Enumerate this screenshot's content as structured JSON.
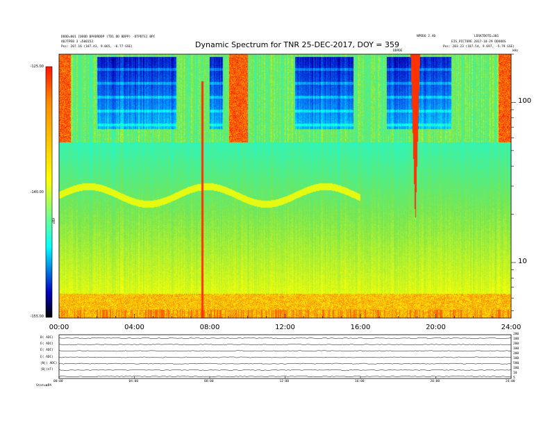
{
  "header": {
    "title": "Dynamic Spectrum for TNR 25-DEC-2017, DOY = 359",
    "left_line1": "DOOD=001 [DOOD  BPADRDDP (TD1 DD BDPP)  -DTPDTEJ BPC",
    "left_line2": "ADJTPEB 3  =500152",
    "left_line3": "Pos:  207.16 (187.43, 9.065, -6.77 GSE)",
    "right_top_mid": "NPODO 2.40",
    "right_top_right": "LDSKTDOTE=301",
    "right_line2": "EIS_PICTURE 2017-10-29 DDOOOS",
    "right_line3": "Pos:  203.23 (187.54, 9.697, -5.79 GSE)",
    "over_plot_label": "DDPDE",
    "right_corner_label": "kHz"
  },
  "colorbar": {
    "unit_label": "dBV",
    "tick_labels": [
      "-125.00",
      "-140.00",
      "-155.00"
    ],
    "stops": [
      "#ff1400",
      "#ff8a00",
      "#ffff00",
      "#00ffff",
      "#0000c0",
      "#000000"
    ]
  },
  "chart_data": {
    "type": "heatmap",
    "title": "Dynamic Spectrum for TNR 25-DEC-2017, DOY = 359",
    "xlabel": "",
    "ylabel": "kHz",
    "x_ticks": [
      "00:00",
      "04:00",
      "08:00",
      "12:00",
      "16:00",
      "20:00",
      "24:00"
    ],
    "x_range_hours": [
      0,
      24
    ],
    "y_scale": "log",
    "y_ticks": [
      100,
      10
    ],
    "y_tick_labels": [
      "100",
      "10"
    ],
    "colorbar_range_dBV": [
      -155,
      -125
    ],
    "colormap_order_low_to_high": [
      "black",
      "blue",
      "cyan",
      "yellow",
      "orange",
      "red"
    ],
    "bands": [
      {
        "name": "upper receiver band (above ~65 kHz)",
        "baseline": "cyan-green",
        "strong_absorption_intervals_hours": [
          [
            2.0,
            6.2
          ],
          [
            8.0,
            8.7
          ],
          [
            12.5,
            15.6
          ],
          [
            17.4,
            20.8
          ]
        ]
      },
      {
        "name": "lower receiver band (below ~65 kHz)",
        "baseline": "cyan-green gradient to yellow near bottom"
      }
    ],
    "features": [
      {
        "type": "burst",
        "hour": 7.6,
        "note": "narrow red vertical emission through lower band"
      },
      {
        "type": "burst",
        "hour": 18.9,
        "note": "red tapering feature reaching ~20 kHz"
      },
      {
        "type": "band_edge",
        "hours": [
          0.3,
          16.0
        ],
        "note": "brightening plasma line ~20-45 kHz"
      }
    ]
  },
  "aux_panel": {
    "row_labels": [
      "B( ADC)",
      "E( ADC)",
      "E( ADC)",
      "E( ADC)",
      "|N|( ADC)",
      "|B|(nT)",
      ""
    ],
    "right_labels": [
      "200",
      "100",
      "200",
      "100",
      "200",
      "100",
      "500",
      "100",
      "10",
      "5"
    ],
    "x_ticks": [
      "00:00",
      "04:00",
      "08:00",
      "12:00",
      "16:00",
      "20:00",
      "24:00"
    ],
    "footer_label": "Status:",
    "footer_value": "   ePA"
  }
}
